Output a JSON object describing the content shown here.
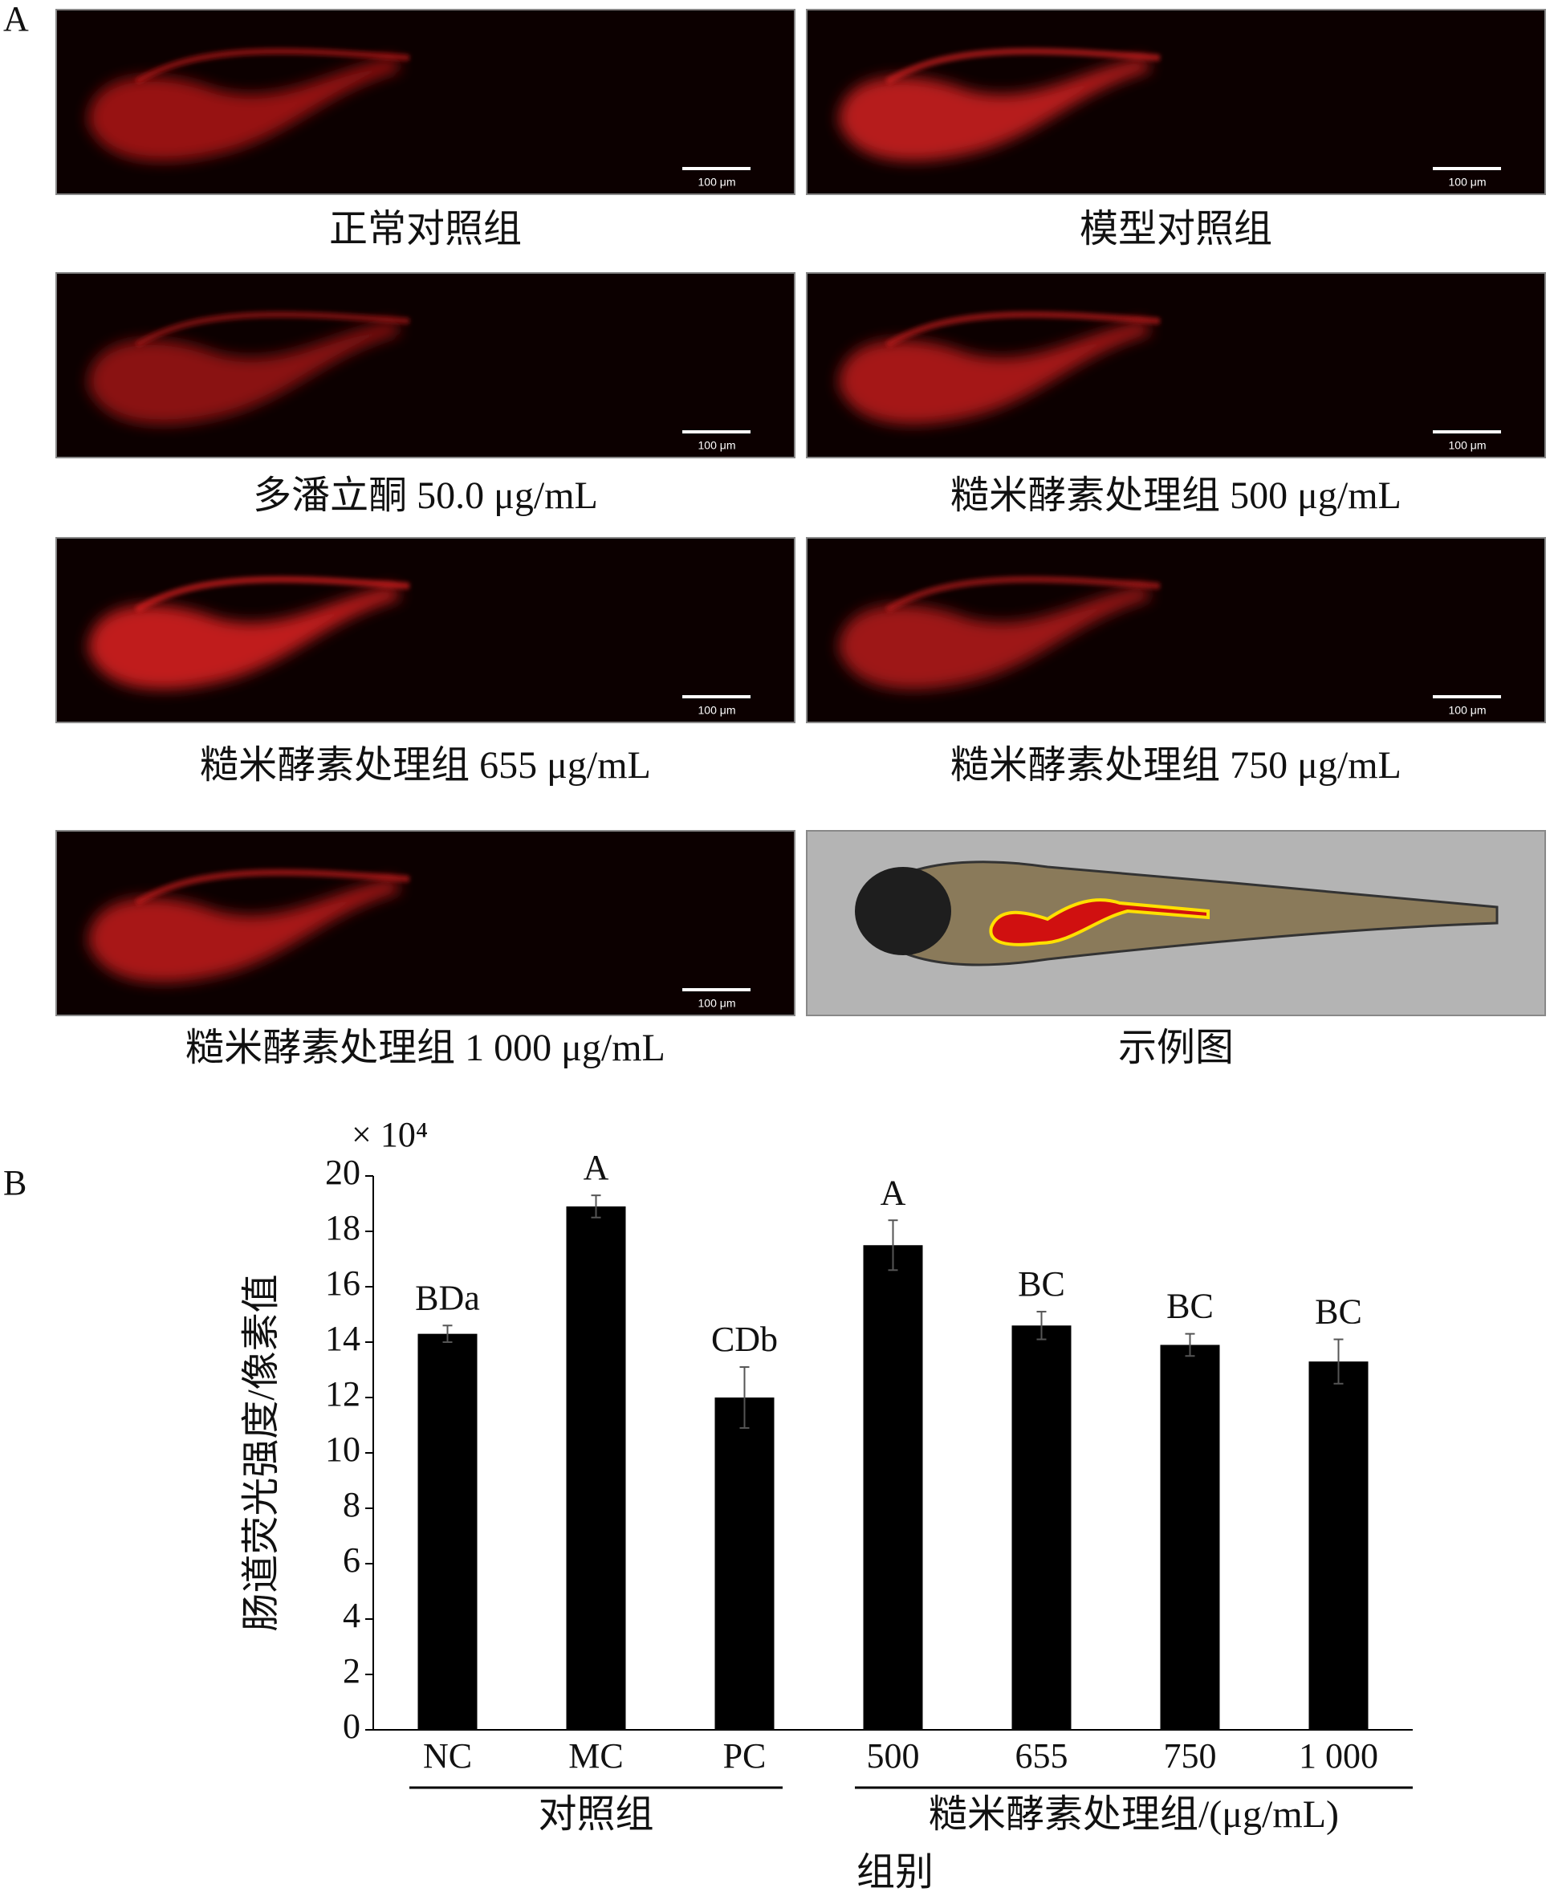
{
  "panel_a": {
    "label": "A",
    "scale_bar_label": "100 μm",
    "images": [
      {
        "caption": "正常对照组"
      },
      {
        "caption": "模型对照组"
      },
      {
        "caption": "多潘立酮 50.0 μg/mL"
      },
      {
        "caption": "糙米酵素处理组 500 μg/mL"
      },
      {
        "caption": "糙米酵素处理组 655 μg/mL"
      },
      {
        "caption": "糙米酵素处理组 750 μg/mL"
      },
      {
        "caption": "糙米酵素处理组 1 000 μg/mL"
      },
      {
        "caption": "示例图"
      }
    ]
  },
  "chart_data": {
    "type": "bar",
    "panel_label": "B",
    "y_label": "肠道荧光强度/像素值",
    "y_multiplier": "× 10⁴",
    "x_label": "组别",
    "categories": [
      "NC",
      "MC",
      "PC",
      "500",
      "655",
      "750",
      "1 000"
    ],
    "values": [
      14.3,
      18.9,
      12.0,
      17.5,
      14.6,
      13.9,
      13.3
    ],
    "errors": [
      0.3,
      0.4,
      1.1,
      0.9,
      0.5,
      0.4,
      0.8
    ],
    "significance": [
      "BDa",
      "A",
      "CDb",
      "A",
      "BC",
      "BC",
      "BC"
    ],
    "groups": [
      {
        "label": "对照组",
        "categories": [
          "NC",
          "MC",
          "PC"
        ]
      },
      {
        "label": "糙米酵素处理组/(μg/mL)",
        "categories": [
          "500",
          "655",
          "750",
          "1 000"
        ]
      }
    ],
    "color": "#000000",
    "ylim": [
      0,
      20
    ],
    "yticks": [
      0,
      2,
      4,
      6,
      8,
      10,
      12,
      14,
      16,
      18,
      20
    ],
    "grid": false
  }
}
